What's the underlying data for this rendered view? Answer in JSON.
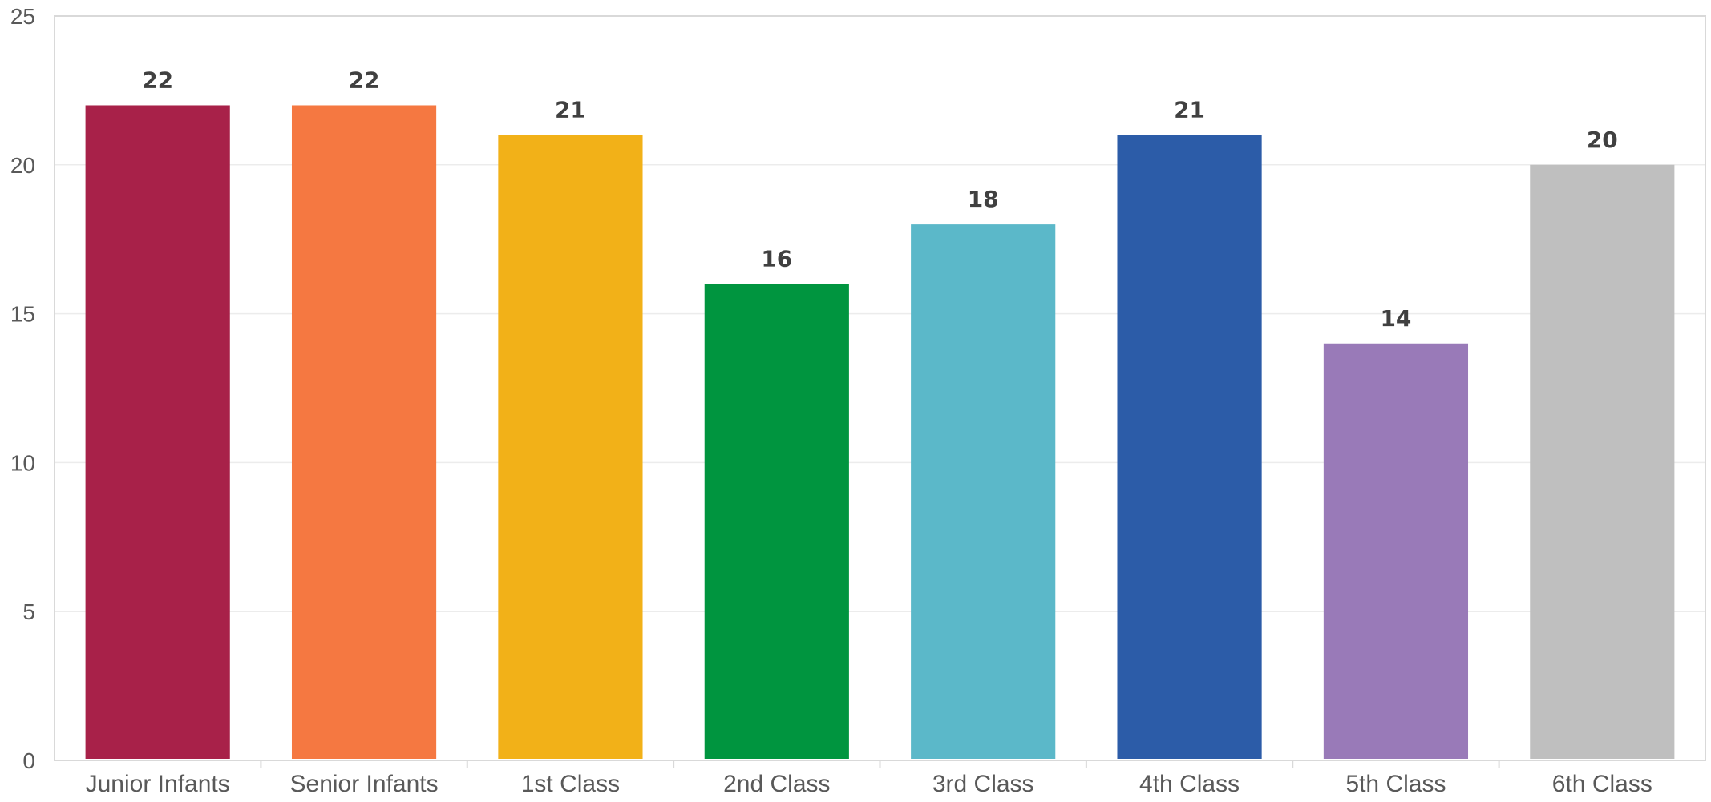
{
  "chart_data": {
    "type": "bar",
    "title": "",
    "xlabel": "",
    "ylabel": "",
    "categories": [
      "Junior Infants",
      "Senior Infants",
      "1st Class",
      "2nd Class",
      "3rd Class",
      "4th Class",
      "5th Class",
      "6th Class"
    ],
    "values": [
      22,
      22,
      21,
      16,
      18,
      21,
      14,
      20
    ],
    "data_labels": [
      "22",
      "22",
      "21",
      "16",
      "18",
      "21",
      "14",
      "20"
    ],
    "colors": [
      "#A82149",
      "#F57841",
      "#F2B118",
      "#00953F",
      "#5BB8C9",
      "#2C5CA8",
      "#997AB8",
      "#BFBFBF"
    ],
    "ylim": [
      0,
      25
    ],
    "yticks": [
      0,
      5,
      10,
      15,
      20,
      25
    ],
    "ytick_labels": [
      "0",
      "5",
      "10",
      "15",
      "20",
      "25"
    ],
    "grid": true,
    "legend": "none",
    "gridline_color": "#ECECEC",
    "axis_color": "#D9D9D9"
  }
}
